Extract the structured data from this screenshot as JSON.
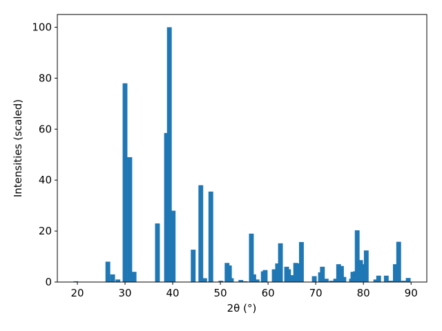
{
  "chart_data": {
    "type": "bar",
    "x_label": "2θ (°)",
    "y_label": "Intensities (scaled)",
    "color": "#1f77b4",
    "bar_width": 1,
    "x": [
      19.7,
      26.4,
      27.4,
      28.5,
      30.0,
      31.0,
      31.9,
      36.8,
      38.7,
      39.3,
      40.1,
      44.3,
      45.9,
      46.7,
      48.0,
      50.1,
      51.4,
      51.9,
      52.3,
      54.3,
      55.2,
      56.5,
      57.0,
      57.7,
      59.0,
      59.4,
      61.3,
      62.0,
      62.6,
      63.9,
      64.3,
      64.9,
      65.8,
      66.2,
      67.0,
      69.7,
      71.0,
      71.4,
      72.2,
      73.3,
      74.2,
      74.8,
      75.4,
      75.9,
      77.5,
      77.8,
      78.3,
      78.7,
      79.4,
      80.0,
      80.6,
      82.6,
      83.2,
      84.8,
      85.7,
      86.7,
      87.4,
      88.4,
      89.4
    ],
    "values": [
      0.3,
      8,
      3,
      1,
      78,
      49,
      4,
      23,
      58.5,
      100,
      28,
      12.7,
      38,
      1.5,
      35.5,
      0.5,
      7.5,
      6.5,
      1.5,
      0.8,
      0.3,
      19,
      3,
      1,
      4.2,
      4.7,
      5,
      7.3,
      15.2,
      6,
      5,
      2.7,
      7.5,
      7.3,
      15.7,
      2.3,
      3.8,
      6,
      1.3,
      0.5,
      1.3,
      7,
      6.3,
      2,
      1.3,
      4,
      4.2,
      20.3,
      8.6,
      7,
      12.4,
      1,
      2.5,
      2.5,
      0.5,
      7,
      15.8,
      0.5,
      1.6
    ],
    "xlim": [
      15.8,
      93.3
    ],
    "xticks": [
      20,
      30,
      40,
      50,
      60,
      70,
      80,
      90
    ],
    "ylim": [
      0,
      105
    ],
    "yticks": [
      0,
      20,
      40,
      60,
      80,
      100
    ]
  }
}
